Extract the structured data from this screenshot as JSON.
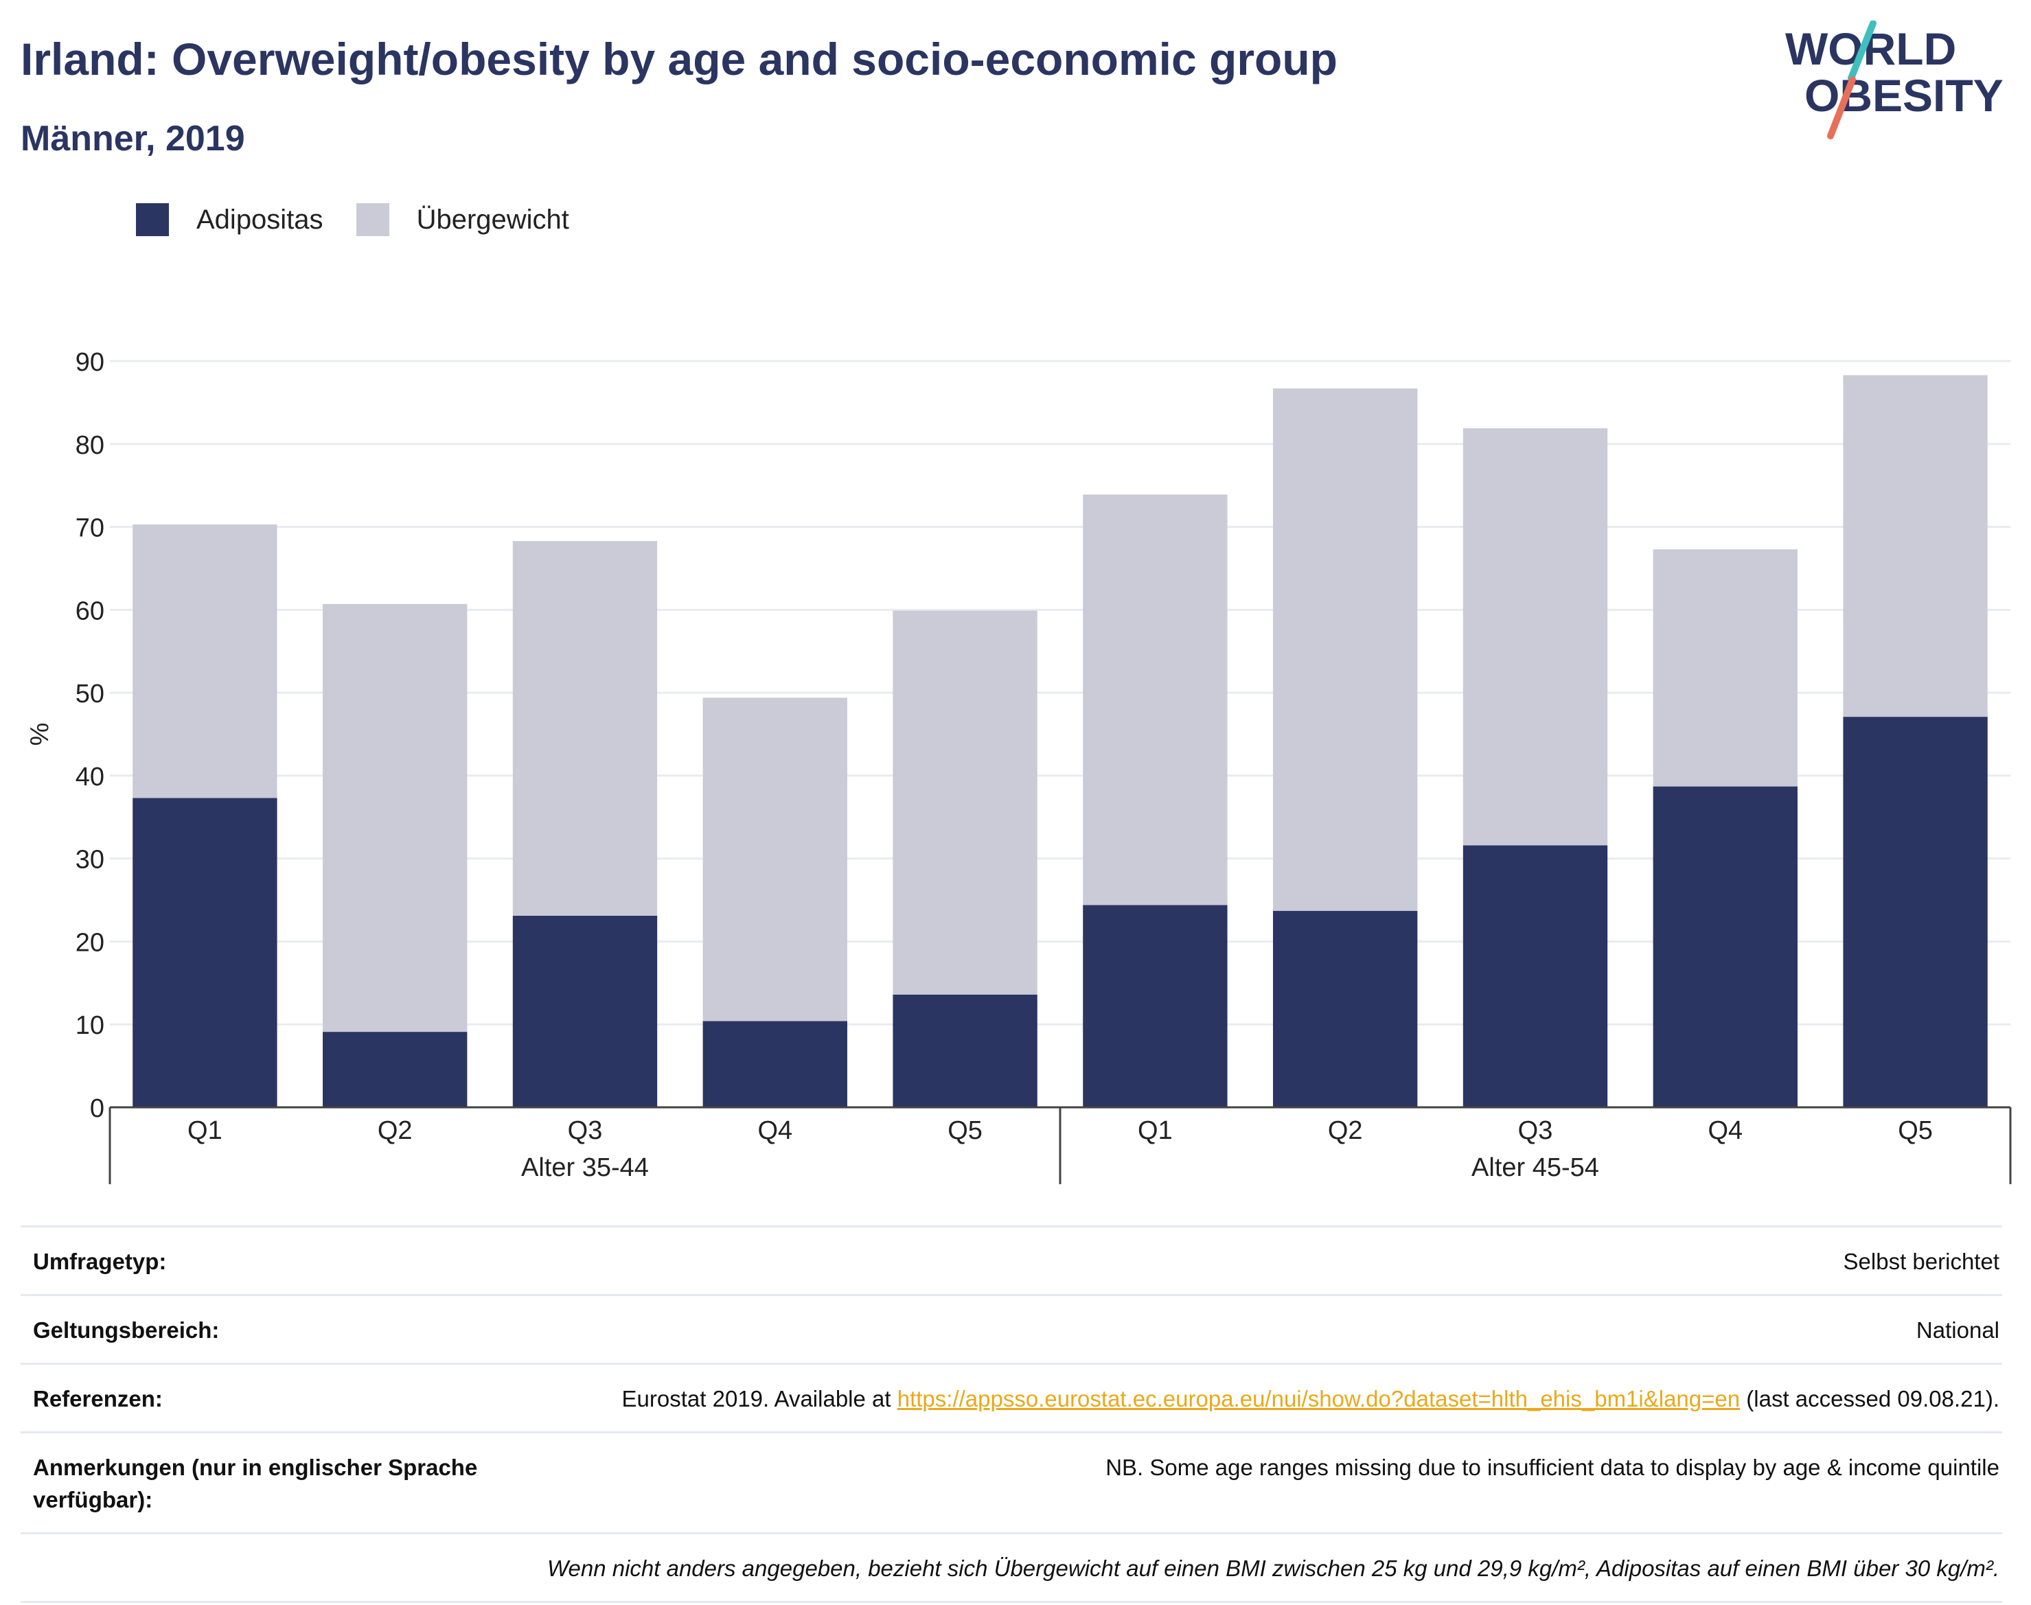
{
  "header": {
    "title": "Irland: Overweight/obesity by age and socio-economic group",
    "subtitle": "Männer, 2019"
  },
  "logo": {
    "line1": "WORLD",
    "line2": "OBESITY",
    "colors": {
      "text": "#2b3562",
      "slash_top": "#3fbfbf",
      "slash_bottom": "#e8705a"
    }
  },
  "legend": {
    "items": [
      {
        "label": "Adipositas",
        "color": "#2b3562"
      },
      {
        "label": "Übergewicht",
        "color": "#cacbd7"
      }
    ]
  },
  "chart_data": {
    "type": "bar",
    "stacked": true,
    "ylabel": "%",
    "ylim": [
      0,
      90
    ],
    "yticks": [
      0,
      10,
      20,
      30,
      40,
      50,
      60,
      70,
      80,
      90
    ],
    "grid": true,
    "legend_position": "top-left",
    "groups": [
      {
        "label": "Alter 35-44",
        "categories": [
          "Q1",
          "Q2",
          "Q3",
          "Q4",
          "Q5"
        ]
      },
      {
        "label": "Alter 45-54",
        "categories": [
          "Q1",
          "Q2",
          "Q3",
          "Q4",
          "Q5"
        ]
      }
    ],
    "categories": [
      "Q1",
      "Q2",
      "Q3",
      "Q4",
      "Q5",
      "Q1",
      "Q2",
      "Q3",
      "Q4",
      "Q5"
    ],
    "series": [
      {
        "name": "Adipositas",
        "color": "#2b3562",
        "values": [
          37.3,
          9.1,
          23.1,
          10.4,
          13.6,
          24.4,
          23.7,
          31.6,
          38.7,
          47.1
        ]
      },
      {
        "name": "Übergewicht",
        "color": "#cacbd7",
        "values": [
          33.0,
          51.6,
          45.2,
          39.0,
          46.3,
          49.5,
          63.0,
          50.3,
          28.6,
          41.2
        ]
      }
    ]
  },
  "info": {
    "rows": [
      {
        "label": "Umfragetyp:",
        "value": "Selbst berichtet"
      },
      {
        "label": "Geltungsbereich:",
        "value": "National"
      },
      {
        "label": "Referenzen:",
        "value_prefix": "Eurostat 2019. Available at ",
        "link": "https://appsso.eurostat.ec.europa.eu/nui/show.do?dataset=hlth_ehis_bm1i&lang=en",
        "value_suffix": " (last accessed 09.08.21)."
      },
      {
        "label": "Anmerkungen (nur in englischer Sprache verfügbar):",
        "value": "NB. Some age ranges missing due to insufficient data to display by age & income quintile"
      }
    ],
    "footnote": "Wenn nicht anders angegeben, bezieht sich Übergewicht auf einen BMI zwischen 25 kg und 29,9 kg/m², Adipositas auf einen BMI über 30 kg/m²."
  }
}
